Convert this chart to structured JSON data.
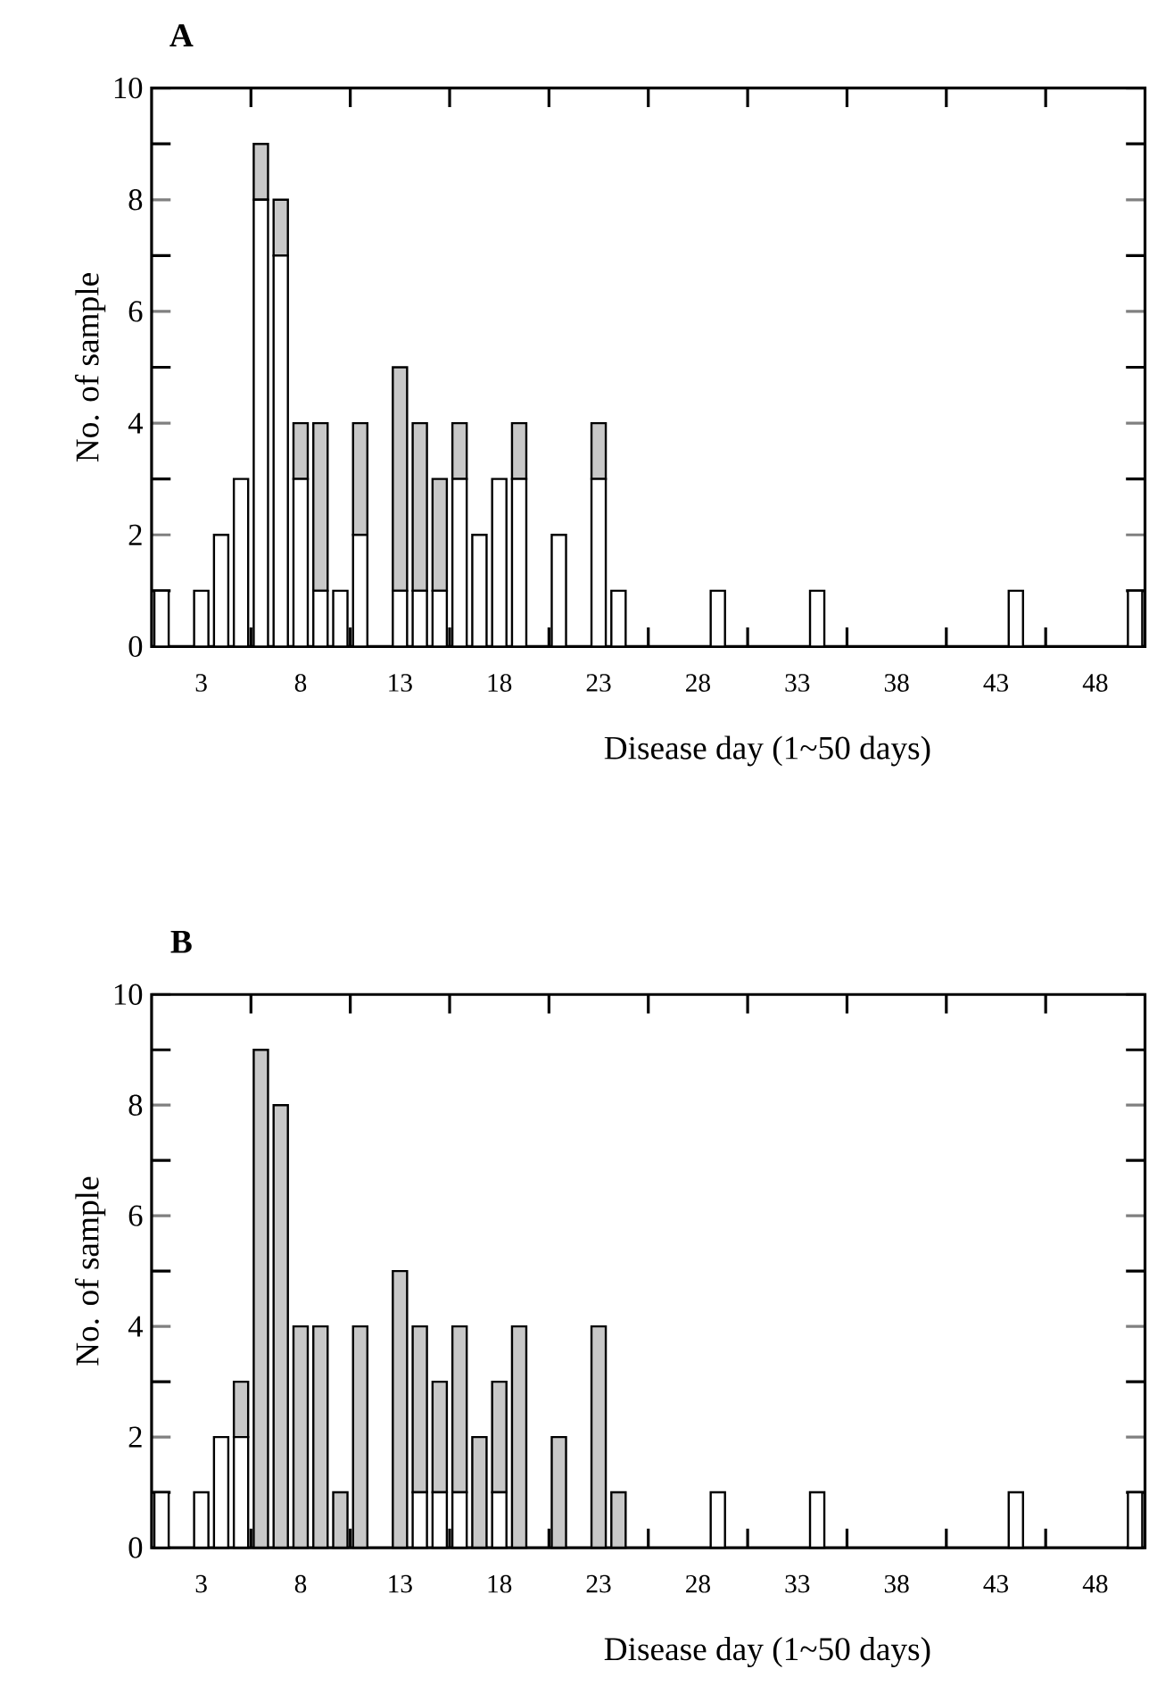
{
  "chart_data": [
    {
      "type": "bar",
      "title": "A",
      "xlabel": "Disease day (1~50 days)",
      "ylabel": "No. of sample",
      "stacked": true,
      "x": [
        1,
        2,
        3,
        4,
        5,
        6,
        7,
        8,
        9,
        10,
        11,
        12,
        13,
        14,
        15,
        16,
        17,
        18,
        19,
        20,
        21,
        22,
        23,
        24,
        25,
        26,
        27,
        28,
        29,
        30,
        31,
        32,
        33,
        34,
        35,
        36,
        37,
        38,
        39,
        40,
        41,
        42,
        43,
        44,
        45,
        46,
        47,
        48,
        49,
        50
      ],
      "series": [
        {
          "color": "#ffffff",
          "values": [
            1,
            0,
            1,
            2,
            3,
            8,
            7,
            3,
            1,
            1,
            2,
            0,
            1,
            1,
            1,
            3,
            2,
            3,
            3,
            0,
            2,
            0,
            3,
            1,
            0,
            0,
            0,
            0,
            1,
            0,
            0,
            0,
            0,
            1,
            0,
            0,
            0,
            0,
            0,
            0,
            0,
            0,
            0,
            1,
            0,
            0,
            0,
            0,
            0,
            1
          ]
        },
        {
          "color": "#c8c8c8",
          "values": [
            0,
            0,
            0,
            0,
            0,
            1,
            1,
            1,
            3,
            0,
            2,
            0,
            4,
            3,
            2,
            1,
            0,
            0,
            1,
            0,
            0,
            0,
            1,
            0,
            0,
            0,
            0,
            0,
            0,
            0,
            0,
            0,
            0,
            0,
            0,
            0,
            0,
            0,
            0,
            0,
            0,
            0,
            0,
            0,
            0,
            0,
            0,
            0,
            0,
            0
          ]
        }
      ],
      "xlim": [
        0.5,
        50.5
      ],
      "ylim": [
        0,
        10
      ],
      "xticks": [
        3,
        8,
        13,
        18,
        23,
        28,
        33,
        38,
        43,
        48,
        {
          "value": 5.5,
          "label": null
        },
        {
          "value": 10.5,
          "label": null
        },
        {
          "value": 15.5,
          "label": null
        },
        {
          "value": 20.5,
          "label": null
        },
        {
          "value": 25.5,
          "label": null
        },
        {
          "value": 30.5,
          "label": null
        },
        {
          "value": 35.5,
          "label": null
        },
        {
          "value": 40.5,
          "label": null
        },
        {
          "value": 45.5,
          "label": null
        }
      ],
      "yticks": [
        0,
        2,
        4,
        6,
        8,
        10,
        {
          "value": 1,
          "label": null
        },
        {
          "value": 3,
          "label": null
        },
        {
          "value": 5,
          "label": null
        },
        {
          "value": 7,
          "label": null
        },
        {
          "value": 9,
          "label": null
        }
      ]
    },
    {
      "type": "bar",
      "title": "B",
      "xlabel": "Disease day (1~50 days)",
      "ylabel": "No. of sample",
      "stacked": true,
      "x": [
        1,
        2,
        3,
        4,
        5,
        6,
        7,
        8,
        9,
        10,
        11,
        12,
        13,
        14,
        15,
        16,
        17,
        18,
        19,
        20,
        21,
        22,
        23,
        24,
        25,
        26,
        27,
        28,
        29,
        30,
        31,
        32,
        33,
        34,
        35,
        36,
        37,
        38,
        39,
        40,
        41,
        42,
        43,
        44,
        45,
        46,
        47,
        48,
        49,
        50
      ],
      "series": [
        {
          "color": "#ffffff",
          "values": [
            1,
            0,
            1,
            2,
            2,
            0,
            0,
            0,
            0,
            0,
            0,
            0,
            0,
            1,
            1,
            1,
            0,
            1,
            0,
            0,
            0,
            0,
            0,
            0,
            0,
            0,
            0,
            0,
            1,
            0,
            0,
            0,
            0,
            1,
            0,
            0,
            0,
            0,
            0,
            0,
            0,
            0,
            0,
            1,
            0,
            0,
            0,
            0,
            0,
            1
          ]
        },
        {
          "color": "#c8c8c8",
          "values": [
            0,
            0,
            0,
            0,
            1,
            9,
            8,
            4,
            4,
            1,
            4,
            0,
            5,
            3,
            2,
            3,
            2,
            2,
            4,
            0,
            2,
            0,
            4,
            1,
            0,
            0,
            0,
            0,
            0,
            0,
            0,
            0,
            0,
            0,
            0,
            0,
            0,
            0,
            0,
            0,
            0,
            0,
            0,
            0,
            0,
            0,
            0,
            0,
            0,
            0
          ]
        }
      ],
      "xlim": [
        0.5,
        50.5
      ],
      "ylim": [
        0,
        10
      ],
      "xticks": [
        3,
        8,
        13,
        18,
        23,
        28,
        33,
        38,
        43,
        48,
        {
          "value": 5.5,
          "label": null
        },
        {
          "value": 10.5,
          "label": null
        },
        {
          "value": 15.5,
          "label": null
        },
        {
          "value": 20.5,
          "label": null
        },
        {
          "value": 25.5,
          "label": null
        },
        {
          "value": 30.5,
          "label": null
        },
        {
          "value": 35.5,
          "label": null
        },
        {
          "value": 40.5,
          "label": null
        },
        {
          "value": 45.5,
          "label": null
        }
      ],
      "yticks": [
        0,
        2,
        4,
        6,
        8,
        10,
        {
          "value": 1,
          "label": null
        },
        {
          "value": 3,
          "label": null
        },
        {
          "value": 5,
          "label": null
        },
        {
          "value": 7,
          "label": null
        },
        {
          "value": 9,
          "label": null
        }
      ]
    }
  ]
}
